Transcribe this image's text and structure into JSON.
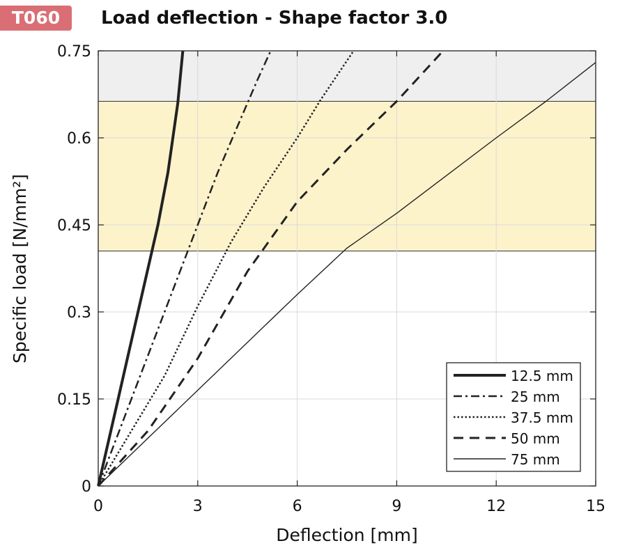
{
  "header": {
    "badge": "T060",
    "title": "Load deflection - Shape factor 3.0"
  },
  "colors": {
    "badge": "#d96f75",
    "band_gray": "#efefef",
    "band_yellow": "#fdf3cb",
    "grid": "#d9d9d9",
    "line": "#222222",
    "axis": "#222222"
  },
  "chart_data": {
    "type": "line",
    "title": "Load deflection - Shape factor 3.0",
    "xlabel": "Deflection  [mm]",
    "ylabel": "Specific load [N/mm²]",
    "xlim": [
      0,
      15
    ],
    "ylim": [
      0,
      0.75
    ],
    "xticks": [
      0,
      3,
      6,
      9,
      12,
      15
    ],
    "yticks": [
      0,
      0.15,
      0.3,
      0.45,
      0.6,
      0.75
    ],
    "xtick_labels": [
      "0",
      "3",
      "6",
      "9",
      "12",
      "15"
    ],
    "ytick_labels": [
      "0",
      "0.15",
      "0.3",
      "0.45",
      "0.6",
      "0.75"
    ],
    "grid": true,
    "legend_position": "bottom-right",
    "bands": [
      {
        "y0": 0.405,
        "y1": 0.663,
        "color": "yellow"
      },
      {
        "y0": 0.663,
        "y1": 0.75,
        "color": "gray"
      }
    ],
    "series": [
      {
        "name": "12.5 mm",
        "style": "solid-thick",
        "x": [
          0,
          0.3,
          0.6,
          0.9,
          1.2,
          1.5,
          1.8,
          2.1,
          2.4,
          2.55
        ],
        "y": [
          0,
          0.075,
          0.15,
          0.225,
          0.3,
          0.375,
          0.45,
          0.54,
          0.66,
          0.75
        ]
      },
      {
        "name": "25 mm",
        "style": "dashdot",
        "x": [
          0,
          0.6,
          1.2,
          1.8,
          2.4,
          3.0,
          3.6,
          4.2,
          4.8,
          5.2
        ],
        "y": [
          0,
          0.09,
          0.18,
          0.27,
          0.36,
          0.45,
          0.54,
          0.62,
          0.7,
          0.75
        ]
      },
      {
        "name": "37.5 mm",
        "style": "dotted",
        "x": [
          0,
          1.0,
          2.0,
          3.0,
          4.0,
          5.0,
          6.0,
          6.7,
          7.7
        ],
        "y": [
          0,
          0.095,
          0.19,
          0.31,
          0.42,
          0.515,
          0.6,
          0.665,
          0.75
        ]
      },
      {
        "name": "50 mm",
        "style": "dashed",
        "x": [
          0,
          1.5,
          3.0,
          4.5,
          6.0,
          7.5,
          9.0,
          10.4
        ],
        "y": [
          0,
          0.095,
          0.22,
          0.37,
          0.49,
          0.58,
          0.663,
          0.75
        ]
      },
      {
        "name": "75 mm",
        "style": "solid-thin",
        "x": [
          0,
          3.0,
          6.0,
          7.5,
          9.0,
          12.0,
          13.5,
          15.0
        ],
        "y": [
          0,
          0.165,
          0.33,
          0.41,
          0.47,
          0.6,
          0.663,
          0.73
        ]
      }
    ]
  }
}
